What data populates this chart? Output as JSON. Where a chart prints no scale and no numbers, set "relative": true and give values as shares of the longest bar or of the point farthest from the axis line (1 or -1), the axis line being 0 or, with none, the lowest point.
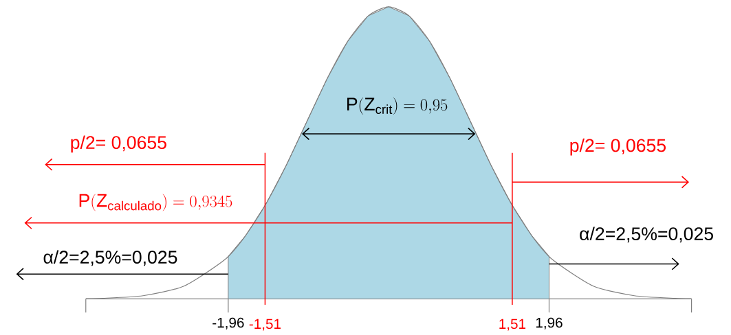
{
  "chart_data": {
    "type": "line",
    "relative": true,
    "series": [
      {
        "type": "area",
        "color": "#add8e6",
        "x": [
          -1.96,
          -1.75,
          -1.5,
          -1.25,
          -1,
          -0.75,
          -0.5,
          -0.25,
          0,
          0.25,
          0.5,
          0.75,
          1,
          1.25,
          1.5,
          1.75,
          1.96
        ],
        "values": [
          0.146,
          0.216,
          0.325,
          0.458,
          0.607,
          0.755,
          0.882,
          0.969,
          1,
          0.969,
          0.882,
          0.755,
          0.607,
          0.458,
          0.325,
          0.216,
          0.146
        ]
      },
      {
        "color": "#808080",
        "x": [
          -3.7,
          -3.5,
          -3,
          -2.5,
          -2,
          -1.75,
          -1.5,
          -1.25,
          -1,
          -0.75,
          -0.5,
          -0.25,
          0,
          0.25,
          0.5,
          0.75,
          1,
          1.25,
          1.5,
          1.75,
          2,
          2.5,
          3,
          3.5,
          3.7
        ],
        "values": [
          0.001,
          0.002,
          0.011,
          0.044,
          0.135,
          0.216,
          0.325,
          0.458,
          0.607,
          0.755,
          0.882,
          0.969,
          1,
          0.969,
          0.882,
          0.755,
          0.607,
          0.458,
          0.325,
          0.216,
          0.135,
          0.044,
          0.011,
          0.002,
          0.001
        ]
      }
    ],
    "xlim": [
      -3.7,
      3.7
    ],
    "xticks": [
      {
        "value": -1.96,
        "label": "-1,96"
      },
      {
        "value": 1.96,
        "label": "1,96"
      }
    ],
    "ref_lines": [
      {
        "axis": "x",
        "value": -1.51,
        "label": "-1,51",
        "color": "#ff0000"
      },
      {
        "axis": "x",
        "value": 1.51,
        "label": "1,51",
        "color": "#ff0000"
      }
    ],
    "annotations": [
      "\\mathrm{P}(\\mathrm{Z}_{\\mathrm{crit}})=0{,}95",
      "p/2= 0,0655",
      "p/2= 0,0655",
      "\\mathrm{P}(\\mathrm{Z}_{\\mathrm{calculado}})=0{,}9345",
      "α/2=2,5%=0,025",
      "α/2=2,5%=0,025"
    ]
  }
}
